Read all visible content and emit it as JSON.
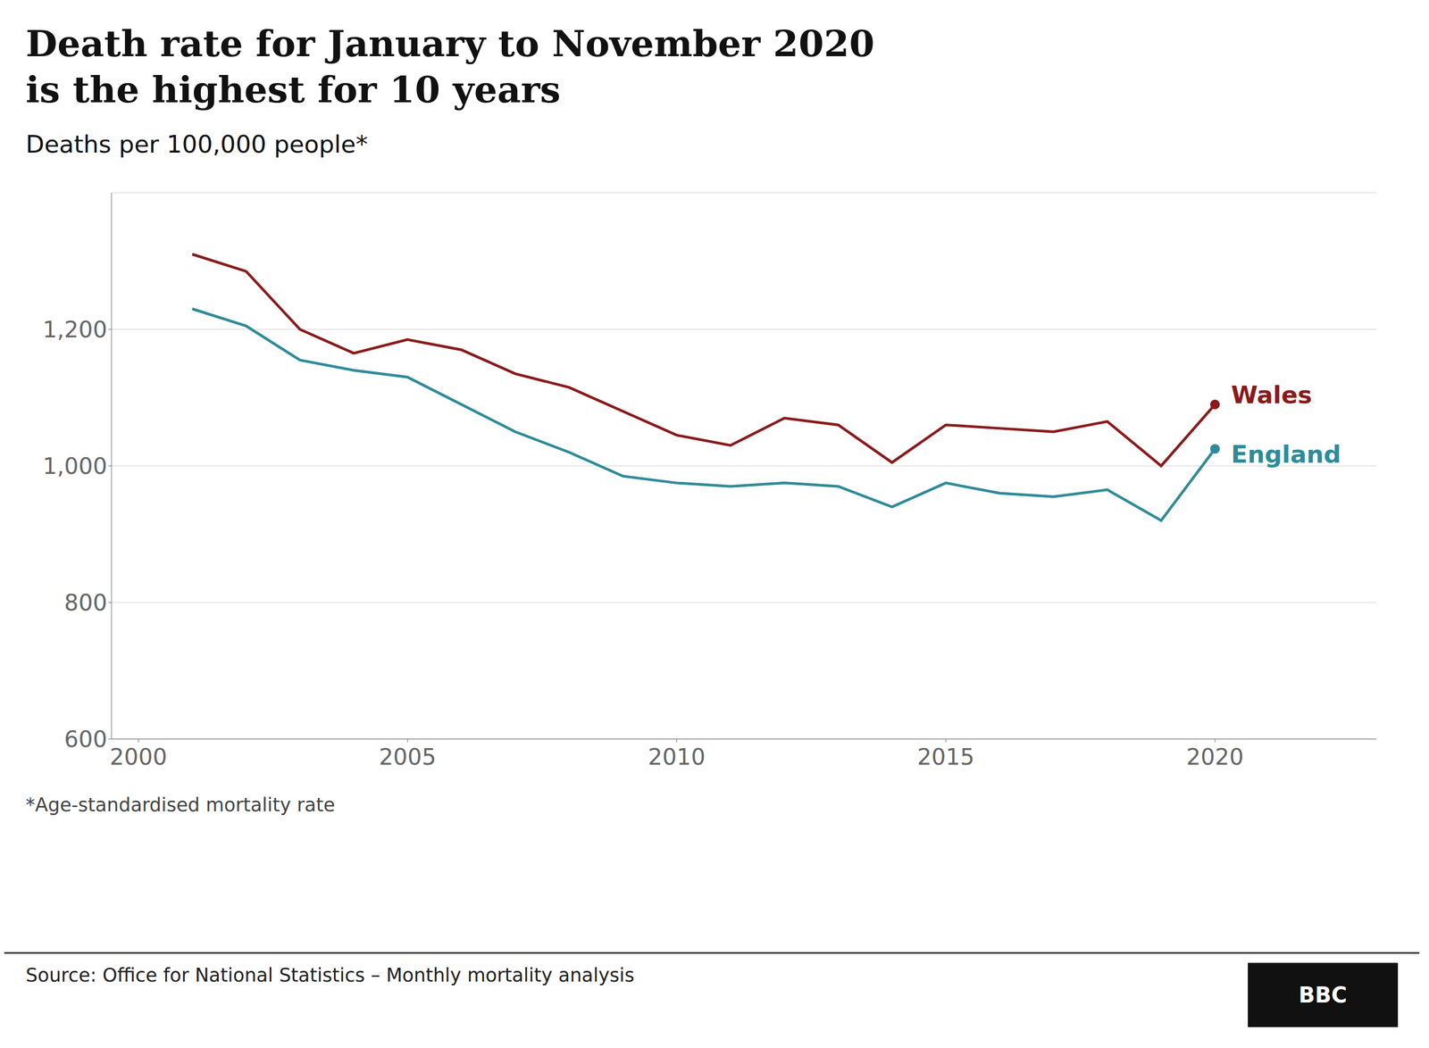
{
  "chart_data": {
    "type": "line",
    "title": "Death rate for January to November 2020\nis the highest for 10 years",
    "subtitle": "Deaths per 100,000 people*",
    "annotations": [
      "*Age-standardised mortality rate",
      "Source: Office for National Statistics – Monthly mortality analysis",
      "BBC"
    ],
    "x": [
      2001,
      2002,
      2003,
      2004,
      2005,
      2006,
      2007,
      2008,
      2009,
      2010,
      2011,
      2012,
      2013,
      2014,
      2015,
      2016,
      2017,
      2018,
      2019,
      2020
    ],
    "series": [
      {
        "name": "Wales",
        "color": "#8B1A1A",
        "values": [
          1310,
          1285,
          1200,
          1165,
          1185,
          1170,
          1135,
          1115,
          1080,
          1045,
          1030,
          1070,
          1060,
          1005,
          1060,
          1055,
          1050,
          1065,
          1000,
          1090
        ]
      },
      {
        "name": "England",
        "color": "#2E8B9A",
        "values": [
          1230,
          1205,
          1155,
          1140,
          1130,
          1090,
          1050,
          1020,
          985,
          975,
          970,
          975,
          970,
          940,
          975,
          960,
          955,
          965,
          920,
          1025
        ]
      }
    ],
    "xlim": [
      1999.5,
      2023
    ],
    "ylim": [
      600,
      1400
    ],
    "xticks": [
      2000,
      2005,
      2010,
      2015,
      2020
    ],
    "yticks": [
      600,
      800,
      {
        "value": 1000,
        "label": "1,000"
      },
      {
        "value": 1200,
        "label": "1,200"
      }
    ],
    "grid": true
  }
}
